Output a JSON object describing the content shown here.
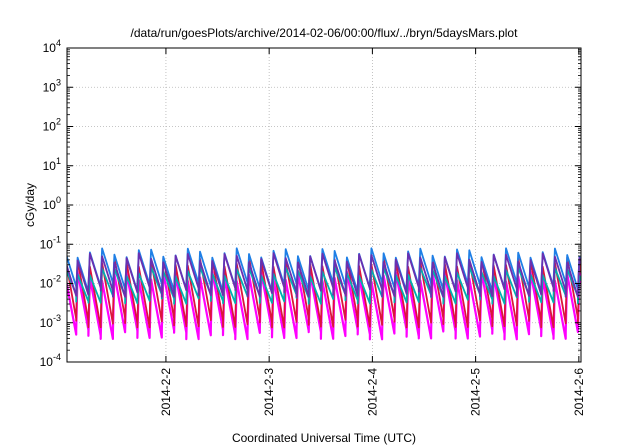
{
  "chart_data": {
    "type": "line",
    "title": "/data/run/goesPlots/archive/2014-02-06/00:00/flux/../bryn/5daysMars.plot",
    "xlabel": "Coordinated Universal Time (UTC)",
    "ylabel": "cGy/day",
    "y_scale": "log",
    "ylim": [
      0.0001,
      10000
    ],
    "y_ticks": [
      {
        "base": "10",
        "exp": "4",
        "value": 10000
      },
      {
        "base": "10",
        "exp": "3",
        "value": 1000
      },
      {
        "base": "10",
        "exp": "2",
        "value": 100
      },
      {
        "base": "10",
        "exp": "1",
        "value": 10
      },
      {
        "base": "10",
        "exp": "0",
        "value": 1
      },
      {
        "base": "10",
        "exp": "-1",
        "value": 0.1
      },
      {
        "base": "10",
        "exp": "-2",
        "value": 0.01
      },
      {
        "base": "10",
        "exp": "-3",
        "value": 0.001
      },
      {
        "base": "10",
        "exp": "-4",
        "value": 0.0001
      }
    ],
    "xlim": [
      "2014-02-01 01:00",
      "2014-02-06 00:30"
    ],
    "x_ticks": [
      {
        "label": "2014-2-2",
        "value": "2014-02-02"
      },
      {
        "label": "2014-2-3",
        "value": "2014-02-03"
      },
      {
        "label": "2014-2-4",
        "value": "2014-02-04"
      },
      {
        "label": "2014-2-5",
        "value": "2014-02-05"
      },
      {
        "label": "2014-2-6",
        "value": "2014-02-06"
      }
    ],
    "grid": true,
    "pattern": "sawtooth, period about 2.7 hours: each cycle jumps up to a peak then decays",
    "series": [
      {
        "color": "#ff00ff",
        "peak": 0.015,
        "trough": 0.0005
      },
      {
        "color": "#dc143c",
        "peak": 0.035,
        "trough": 0.001
      },
      {
        "color": "#00b0b0",
        "peak": 0.02,
        "trough": 0.004
      },
      {
        "color": "#1e7fe6",
        "peak": 0.06,
        "trough": 0.008
      },
      {
        "color": "#6a2fb0",
        "peak": 0.045,
        "trough": 0.006
      }
    ],
    "colors": {
      "grid": "#b4b4b4",
      "axis": "#000000"
    }
  }
}
